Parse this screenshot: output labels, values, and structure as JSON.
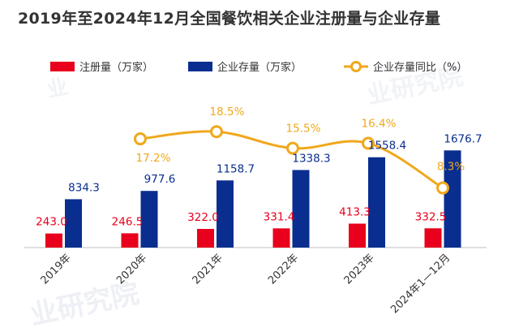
{
  "chart_data": {
    "type": "bar",
    "title": "2019年至2024年12月全国餐饮相关企业注册量与企业存量",
    "categories": [
      "2019年",
      "2020年",
      "2021年",
      "2022年",
      "2023年",
      "2024年1—12月"
    ],
    "series": [
      {
        "name": "注册量（万家）",
        "type": "bar",
        "color": "#e8001c",
        "values": [
          243.0,
          246.5,
          322.0,
          331.4,
          413.3,
          332.5
        ],
        "labels": [
          "243.0",
          "246.5",
          "322.0",
          "331.4",
          "413.3",
          "332.5"
        ]
      },
      {
        "name": "企业存量（万家）",
        "type": "bar",
        "color": "#0a2e8f",
        "values": [
          834.3,
          977.6,
          1158.7,
          1338.3,
          1558.4,
          1676.7
        ],
        "labels": [
          "834.3",
          "977.6",
          "1158.7",
          "1338.3",
          "1558.4",
          "1676.7"
        ]
      },
      {
        "name": "企业存量同比（%）",
        "type": "line",
        "color": "#f0a81c",
        "values": [
          null,
          17.2,
          18.5,
          15.5,
          16.4,
          8.3
        ],
        "labels": [
          "",
          "17.2%",
          "18.5%",
          "15.5%",
          "16.4%",
          "8.3%"
        ]
      }
    ],
    "ylim": [
      0,
      2000
    ],
    "y2lim": [
      0,
      30
    ],
    "legend_position": "top"
  },
  "watermark": "业研究院"
}
